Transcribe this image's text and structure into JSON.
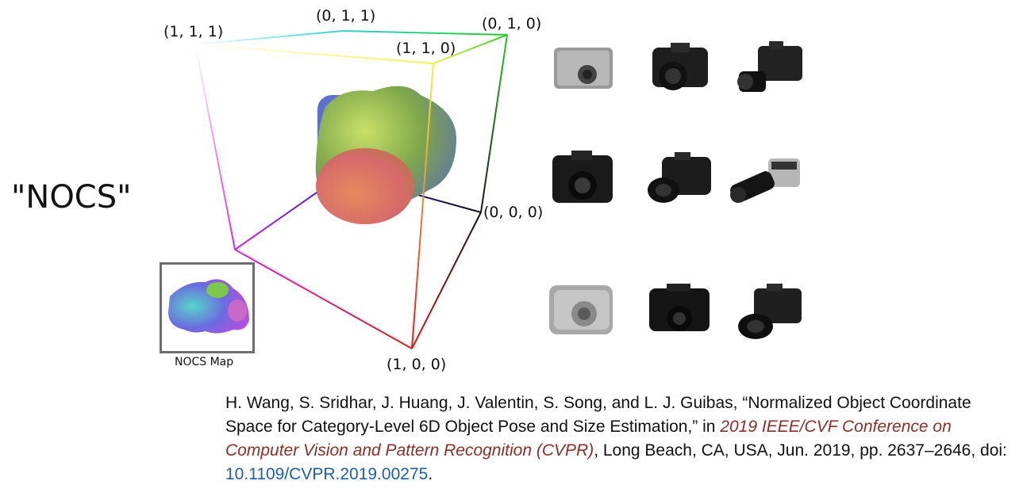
{
  "title": "\"NOCS\"",
  "cube_labels": {
    "c111": "(1, 1, 1)",
    "c011": "(0, 1, 1)",
    "c010": "(0, 1, 0)",
    "c110": "(1, 1, 0)",
    "c000": "(0, 0, 0)",
    "c100": "(1, 0, 0)"
  },
  "inset_label": "NOCS Map",
  "citation": {
    "part1": "H. Wang, S. Sridhar, J. Huang, J. Valentin, S. Song, and L. J. Guibas, “Normalized Object Coordinate Space for Category-Level 6D Object Pose and Size Estimation,” in ",
    "venue": "2019 IEEE/CVF Conference on Computer Vision and Pattern Recognition (CVPR)",
    "part2": ", Long Beach, CA, USA, Jun. 2019, pp. 2637–2646, doi: ",
    "doi": "10.1109/CVPR.2019.00275",
    "part3": "."
  },
  "colors": {
    "venue": "#8a2f27",
    "doi": "#1c5fa8"
  }
}
